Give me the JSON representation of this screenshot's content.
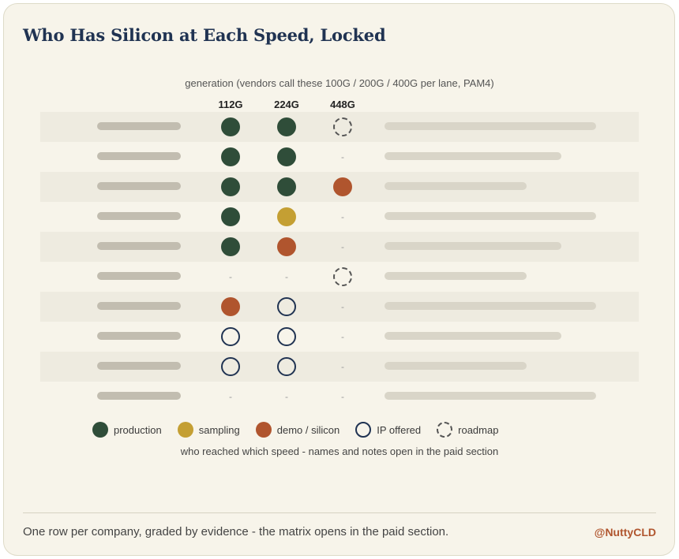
{
  "title": "Who Has Silicon at Each Speed, Locked",
  "generation_header": "generation (vendors call these 100G / 200G / 400G per lane, PAM4)",
  "columns": [
    "112G",
    "224G",
    "448G"
  ],
  "rows": [
    {
      "cells": [
        "production",
        "production",
        "roadmap"
      ],
      "note_width": "long"
    },
    {
      "cells": [
        "production",
        "production",
        "none"
      ],
      "note_width": "medium"
    },
    {
      "cells": [
        "production",
        "production",
        "demo"
      ],
      "note_width": "short"
    },
    {
      "cells": [
        "production",
        "sampling",
        "none"
      ],
      "note_width": "long"
    },
    {
      "cells": [
        "production",
        "demo",
        "none"
      ],
      "note_width": "medium"
    },
    {
      "cells": [
        "none",
        "none",
        "roadmap"
      ],
      "note_width": "short"
    },
    {
      "cells": [
        "demo",
        "ip",
        "none"
      ],
      "note_width": "long"
    },
    {
      "cells": [
        "ip",
        "ip",
        "none"
      ],
      "note_width": "medium"
    },
    {
      "cells": [
        "ip",
        "ip",
        "none"
      ],
      "note_width": "short"
    },
    {
      "cells": [
        "none",
        "none",
        "none"
      ],
      "note_width": "long"
    }
  ],
  "empty_cell_glyph": "-",
  "legend": [
    {
      "key": "production",
      "label": "production",
      "color": "#2f4d39"
    },
    {
      "key": "sampling",
      "label": "sampling",
      "color": "#c49f33"
    },
    {
      "key": "demo",
      "label": "demo / silicon",
      "color": "#b0552e"
    },
    {
      "key": "ip",
      "label": "IP offered",
      "color": "#203352"
    },
    {
      "key": "roadmap",
      "label": "roadmap",
      "color": "#555555"
    }
  ],
  "caption": "who reached which speed - names and notes open in the paid section",
  "footer": {
    "text": "One row per company, graded by evidence - the matrix opens in the paid section.",
    "handle": "@NuttyCLD"
  }
}
